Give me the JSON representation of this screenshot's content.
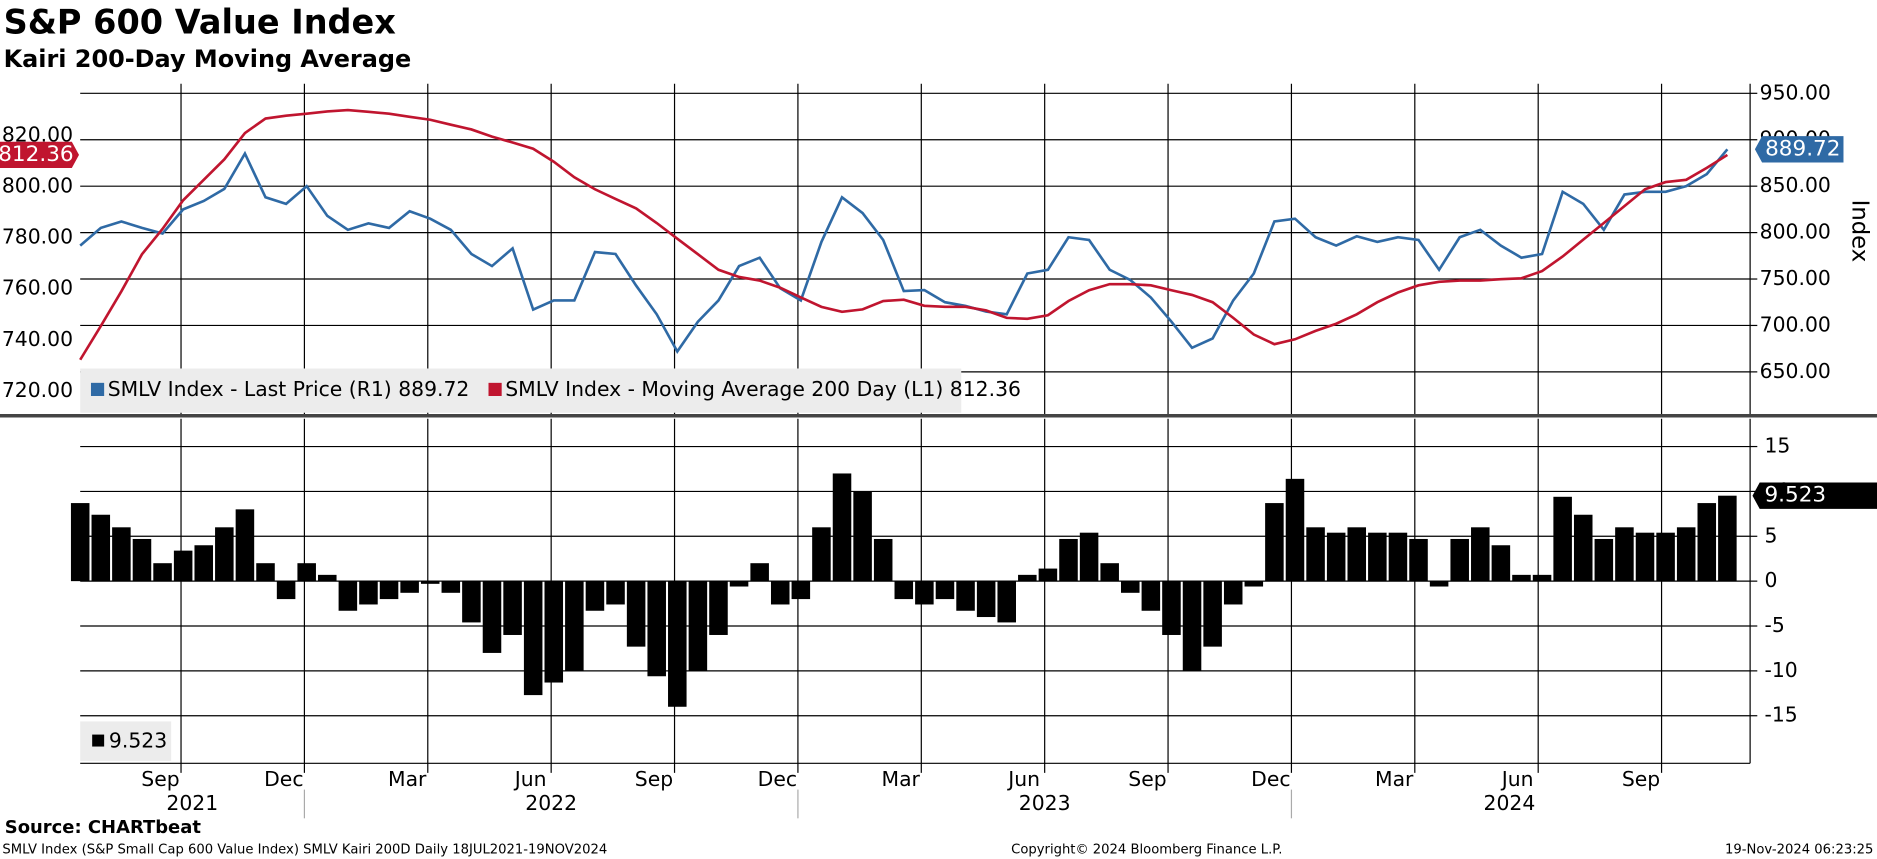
{
  "title": "S&P 600 Value Index",
  "subtitle": "Kairi 200-Day Moving Average",
  "source": "Source: CHARTbeat",
  "footer_left": "SMLV Index (S&P Small Cap 600 Value Index) SMLV Kairi 200D  Daily 18JUL2021-19NOV2024",
  "footer_center": "Copyright© 2024 Bloomberg Finance L.P.",
  "footer_right": "19-Nov-2024 06:23:25",
  "chart_data": [
    {
      "type": "line",
      "y2_label": "Index",
      "ylim": [
        711,
        840.2
      ],
      "yticks": [
        {
          "value": 720,
          "label": "720.00"
        },
        {
          "value": 740,
          "label": "740.00"
        },
        {
          "value": 760,
          "label": "760.00"
        },
        {
          "value": 780,
          "label": "780.00"
        },
        {
          "value": 800,
          "label": "800.00"
        },
        {
          "value": 820,
          "label": "820.00"
        }
      ],
      "y2lim": [
        604.7,
        960.3
      ],
      "y2ticks": [
        {
          "value": 650,
          "label": "650.00"
        },
        {
          "value": 700,
          "label": "700.00"
        },
        {
          "value": 750,
          "label": "750.00"
        },
        {
          "value": 800,
          "label": "800.00"
        },
        {
          "value": 850,
          "label": "850.00"
        },
        {
          "value": 900,
          "label": "900.00"
        },
        {
          "value": 950,
          "label": "950.00"
        }
      ],
      "grid": true,
      "series": [
        {
          "name": "SMLV Index - Last Price (R1)",
          "color": "#2f6aa5",
          "axis": "y2",
          "values": [
            786,
            805,
            812,
            805,
            799,
            825,
            834,
            847,
            885,
            838,
            831,
            850,
            818,
            803,
            810,
            805,
            823,
            815,
            803,
            777,
            764,
            783,
            717,
            727,
            727,
            779,
            777,
            743,
            712,
            672,
            704,
            727,
            764,
            773,
            740,
            727,
            790,
            838,
            821,
            792,
            737,
            738,
            725,
            721,
            715,
            712,
            756,
            760,
            795,
            792,
            760,
            749,
            730,
            704,
            676,
            686,
            727,
            756,
            812,
            815,
            795,
            786,
            796,
            790,
            795,
            792,
            760,
            795,
            803,
            786,
            773,
            777,
            844,
            831,
            803,
            841,
            844,
            844,
            850,
            863,
            889.72
          ]
        },
        {
          "name": "SMLV Index - Moving Average 200 Day (L1)",
          "color": "#c0152f",
          "axis": "y",
          "values": [
            732.2,
            745.4,
            759,
            773.5,
            783.4,
            794.6,
            802.6,
            810.6,
            820.9,
            826.6,
            827.7,
            828.5,
            829.4,
            829.9,
            829.2,
            828.5,
            827.3,
            826.1,
            824.2,
            822.3,
            819.5,
            817.2,
            814.8,
            809.7,
            803.6,
            798.9,
            795.1,
            791.4,
            785.7,
            779.6,
            773.5,
            767.4,
            764.6,
            763.2,
            760.4,
            756.6,
            752.9,
            751,
            751.9,
            755.2,
            755.7,
            753.3,
            752.9,
            752.9,
            751.5,
            748.6,
            748.2,
            749.6,
            755.2,
            759.4,
            761.8,
            761.8,
            761.3,
            759.4,
            757.6,
            754.7,
            748.6,
            742.1,
            738.3,
            740.2,
            743.5,
            746.3,
            750,
            754.7,
            758.5,
            761.3,
            762.7,
            763.2,
            763.2,
            763.7,
            764.1,
            766.9,
            772.6,
            779.2,
            785.7,
            792.3,
            798.9,
            801.7,
            802.6,
            807.3,
            812.36
          ]
        }
      ]
    },
    {
      "type": "bar",
      "ylim": [
        -20.3,
        18.1
      ],
      "yticks": [
        -15,
        -10,
        -5,
        0,
        5,
        10,
        15
      ],
      "grid": true,
      "xlim": [
        "2021-07-18",
        "2024-11-19"
      ],
      "xticks": [
        {
          "value": "2021-09",
          "label": "Sep"
        },
        {
          "value": "2021-12",
          "label": "Dec"
        },
        {
          "value": "2022-03",
          "label": "Mar"
        },
        {
          "value": "2022-06",
          "label": "Jun"
        },
        {
          "value": "2022-09",
          "label": "Sep"
        },
        {
          "value": "2022-12",
          "label": "Dec"
        },
        {
          "value": "2023-03",
          "label": "Mar"
        },
        {
          "value": "2023-06",
          "label": "Jun"
        },
        {
          "value": "2023-09",
          "label": "Sep"
        },
        {
          "value": "2023-12",
          "label": "Dec"
        },
        {
          "value": "2024-03",
          "label": "Mar"
        },
        {
          "value": "2024-06",
          "label": "Jun"
        },
        {
          "value": "2024-09",
          "label": "Sep"
        }
      ],
      "x_year_labels": [
        "2021",
        "2022",
        "2023",
        "2024"
      ],
      "color": "#000000",
      "values": [
        8.7,
        7.4,
        6,
        4.7,
        2,
        3.4,
        4,
        6,
        8,
        2,
        -2,
        2,
        0.7,
        -3.3,
        -2.6,
        -2,
        -1.3,
        -0.3,
        -1.3,
        -4.6,
        -8,
        -6,
        -12.7,
        -11.3,
        -10,
        -3.3,
        -2.6,
        -7.3,
        -10.6,
        -14,
        -10,
        -6,
        -0.6,
        2,
        -2.6,
        -2,
        6,
        12,
        10,
        4.7,
        -2,
        -2.6,
        -2,
        -3.3,
        -4,
        -4.6,
        0.7,
        1.4,
        4.7,
        5.4,
        2,
        -1.3,
        -3.3,
        -6,
        -10,
        -7.3,
        -2.6,
        -0.6,
        8.7,
        11.4,
        6,
        5.4,
        6,
        5.4,
        5.4,
        4.7,
        -0.6,
        4.7,
        6,
        4,
        0.7,
        0.7,
        9.4,
        7.4,
        4.7,
        6,
        5.4,
        5.4,
        6,
        8.7,
        9.523
      ]
    }
  ]
}
